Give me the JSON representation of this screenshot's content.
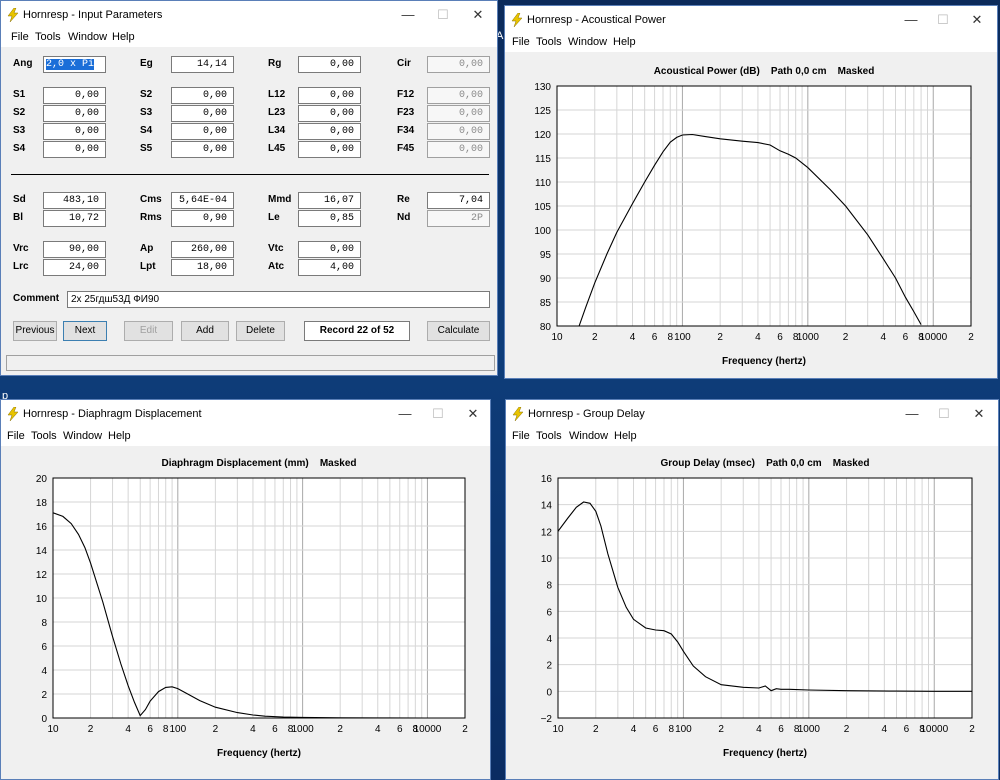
{
  "menu": [
    "File",
    "Tools",
    "Window",
    "Help"
  ],
  "window_controls": {
    "minimize": "—",
    "maximize": "☐",
    "close": "✕"
  },
  "desktop_fragments": {
    "a": "Al",
    "b": "p"
  },
  "input_params": {
    "title": "Hornresp - Input Parameters",
    "rows1": [
      [
        {
          "label": "Ang",
          "value": "2,0 x Pi",
          "selected": true
        },
        {
          "label": "Eg",
          "value": "14,14"
        },
        {
          "label": "Rg",
          "value": "0,00"
        },
        {
          "label": "Cir",
          "value": "0,00",
          "disabled": true
        }
      ],
      [
        {
          "label": "S1",
          "value": "0,00"
        },
        {
          "label": "S2",
          "value": "0,00"
        },
        {
          "label": "L12",
          "value": "0,00"
        },
        {
          "label": "F12",
          "value": "0,00",
          "disabled": true
        }
      ],
      [
        {
          "label": "S2",
          "value": "0,00"
        },
        {
          "label": "S3",
          "value": "0,00"
        },
        {
          "label": "L23",
          "value": "0,00"
        },
        {
          "label": "F23",
          "value": "0,00",
          "disabled": true
        }
      ],
      [
        {
          "label": "S3",
          "value": "0,00"
        },
        {
          "label": "S4",
          "value": "0,00"
        },
        {
          "label": "L34",
          "value": "0,00"
        },
        {
          "label": "F34",
          "value": "0,00",
          "disabled": true
        }
      ],
      [
        {
          "label": "S4",
          "value": "0,00"
        },
        {
          "label": "S5",
          "value": "0,00"
        },
        {
          "label": "L45",
          "value": "0,00"
        },
        {
          "label": "F45",
          "value": "0,00",
          "disabled": true
        }
      ]
    ],
    "rows2": [
      [
        {
          "label": "Sd",
          "value": "483,10"
        },
        {
          "label": "Cms",
          "value": "5,64E-04"
        },
        {
          "label": "Mmd",
          "value": "16,07"
        },
        {
          "label": "Re",
          "value": "7,04"
        }
      ],
      [
        {
          "label": "Bl",
          "value": "10,72"
        },
        {
          "label": "Rms",
          "value": "0,90"
        },
        {
          "label": "Le",
          "value": "0,85"
        },
        {
          "label": "Nd",
          "value": "2P",
          "disabled": true
        }
      ],
      [
        {
          "label": "Vrc",
          "value": "90,00"
        },
        {
          "label": "Ap",
          "value": "260,00"
        },
        {
          "label": "Vtc",
          "value": "0,00"
        }
      ],
      [
        {
          "label": "Lrc",
          "value": "24,00"
        },
        {
          "label": "Lpt",
          "value": "18,00"
        },
        {
          "label": "Atc",
          "value": "4,00"
        }
      ]
    ],
    "comment_label": "Comment",
    "comment_value": "2x 25гдш53Д ФИ90",
    "buttons": {
      "previous": "Previous",
      "next": "Next",
      "edit": "Edit",
      "add": "Add",
      "delete": "Delete",
      "record": "Record 22 of 52",
      "calculate": "Calculate"
    }
  },
  "charts": {
    "acoustic": {
      "window_title": "Hornresp - Acoustical Power"
    },
    "displacement": {
      "window_title": "Hornresp - Diaphragm Displacement"
    },
    "group_delay": {
      "window_title": "Hornresp - Group Delay"
    }
  },
  "chart_data": [
    {
      "type": "line",
      "title": "Acoustical Power (dB)    Path 0,0 cm    Masked",
      "xlabel": "Frequency (hertz)",
      "xscale": "log",
      "xlim": [
        10,
        20000
      ],
      "ylim": [
        80,
        130
      ],
      "yticks": [
        80,
        85,
        90,
        95,
        100,
        105,
        110,
        115,
        120,
        125,
        130
      ],
      "xtick_labels": [
        {
          "v": 10,
          "t": "10"
        },
        {
          "v": 20,
          "t": "2"
        },
        {
          "v": 40,
          "t": "4"
        },
        {
          "v": 60,
          "t": "6"
        },
        {
          "v": 80,
          "t": "8"
        },
        {
          "v": 100,
          "t": "100"
        },
        {
          "v": 200,
          "t": "2"
        },
        {
          "v": 400,
          "t": "4"
        },
        {
          "v": 600,
          "t": "6"
        },
        {
          "v": 800,
          "t": "8"
        },
        {
          "v": 1000,
          "t": "1000"
        },
        {
          "v": 2000,
          "t": "2"
        },
        {
          "v": 4000,
          "t": "4"
        },
        {
          "v": 6000,
          "t": "6"
        },
        {
          "v": 8000,
          "t": "8"
        },
        {
          "v": 10000,
          "t": "10000"
        },
        {
          "v": 20000,
          "t": "2"
        }
      ],
      "grid": true,
      "x": [
        15,
        17,
        20,
        25,
        30,
        40,
        50,
        60,
        70,
        80,
        90,
        100,
        120,
        150,
        200,
        300,
        400,
        500,
        600,
        700,
        800,
        1000,
        1500,
        2000,
        3000,
        4000,
        5000,
        6000,
        7000,
        8000
      ],
      "y": [
        80,
        84,
        89,
        95,
        99.5,
        105.5,
        110,
        113.5,
        116.3,
        118.3,
        119.3,
        119.8,
        119.9,
        119.5,
        119,
        118.5,
        118.2,
        117.7,
        116.5,
        115.8,
        115,
        113,
        108.5,
        105,
        99,
        94,
        90,
        86,
        83,
        80.3
      ]
    },
    {
      "type": "line",
      "title": "Diaphragm Displacement (mm)    Masked",
      "xlabel": "Frequency (hertz)",
      "xscale": "log",
      "xlim": [
        10,
        20000
      ],
      "ylim": [
        0,
        20
      ],
      "yticks": [
        0,
        2,
        4,
        6,
        8,
        10,
        12,
        14,
        16,
        18,
        20
      ],
      "xtick_labels": [
        {
          "v": 10,
          "t": "10"
        },
        {
          "v": 20,
          "t": "2"
        },
        {
          "v": 40,
          "t": "4"
        },
        {
          "v": 60,
          "t": "6"
        },
        {
          "v": 80,
          "t": "8"
        },
        {
          "v": 100,
          "t": "100"
        },
        {
          "v": 200,
          "t": "2"
        },
        {
          "v": 400,
          "t": "4"
        },
        {
          "v": 600,
          "t": "6"
        },
        {
          "v": 800,
          "t": "8"
        },
        {
          "v": 1000,
          "t": "1000"
        },
        {
          "v": 2000,
          "t": "2"
        },
        {
          "v": 4000,
          "t": "4"
        },
        {
          "v": 6000,
          "t": "6"
        },
        {
          "v": 8000,
          "t": "8"
        },
        {
          "v": 10000,
          "t": "10000"
        },
        {
          "v": 20000,
          "t": "2"
        }
      ],
      "grid": true,
      "x": [
        10,
        12,
        14,
        16,
        18,
        20,
        25,
        30,
        35,
        40,
        45,
        50,
        55,
        60,
        70,
        80,
        90,
        100,
        120,
        150,
        200,
        300,
        400,
        500,
        700,
        1000,
        2000,
        5000,
        10000,
        20000
      ],
      "y": [
        17.1,
        16.8,
        16.2,
        15.3,
        14.2,
        12.9,
        9.7,
        6.8,
        4.5,
        2.7,
        1.3,
        0.2,
        0.7,
        1.4,
        2.2,
        2.55,
        2.6,
        2.45,
        2.0,
        1.45,
        0.9,
        0.45,
        0.25,
        0.15,
        0.08,
        0.05,
        0.02,
        0.01,
        0.0,
        0.0
      ]
    },
    {
      "type": "line",
      "title": "Group Delay (msec)    Path 0,0 cm    Masked",
      "xlabel": "Frequency (hertz)",
      "xscale": "log",
      "xlim": [
        10,
        20000
      ],
      "ylim": [
        -2,
        16
      ],
      "yticks": [
        -2,
        0,
        2,
        4,
        6,
        8,
        10,
        12,
        14,
        16
      ],
      "xtick_labels": [
        {
          "v": 10,
          "t": "10"
        },
        {
          "v": 20,
          "t": "2"
        },
        {
          "v": 40,
          "t": "4"
        },
        {
          "v": 60,
          "t": "6"
        },
        {
          "v": 80,
          "t": "8"
        },
        {
          "v": 100,
          "t": "100"
        },
        {
          "v": 200,
          "t": "2"
        },
        {
          "v": 400,
          "t": "4"
        },
        {
          "v": 600,
          "t": "6"
        },
        {
          "v": 800,
          "t": "8"
        },
        {
          "v": 1000,
          "t": "1000"
        },
        {
          "v": 2000,
          "t": "2"
        },
        {
          "v": 4000,
          "t": "4"
        },
        {
          "v": 6000,
          "t": "6"
        },
        {
          "v": 8000,
          "t": "8"
        },
        {
          "v": 10000,
          "t": "10000"
        },
        {
          "v": 20000,
          "t": "2"
        }
      ],
      "grid": true,
      "x": [
        10,
        12,
        14,
        16,
        18,
        20,
        22,
        25,
        30,
        35,
        40,
        50,
        60,
        70,
        80,
        90,
        100,
        120,
        150,
        200,
        300,
        400,
        450,
        500,
        550,
        600,
        700,
        1000,
        2000,
        5000,
        10000,
        20000
      ],
      "y": [
        12.0,
        13.0,
        13.8,
        14.2,
        14.1,
        13.5,
        12.4,
        10.3,
        7.8,
        6.3,
        5.4,
        4.75,
        4.6,
        4.55,
        4.3,
        3.7,
        3.0,
        1.9,
        1.1,
        0.5,
        0.3,
        0.25,
        0.4,
        0.05,
        0.2,
        0.15,
        0.15,
        0.1,
        0.05,
        0.02,
        0.0,
        0.0
      ]
    }
  ]
}
